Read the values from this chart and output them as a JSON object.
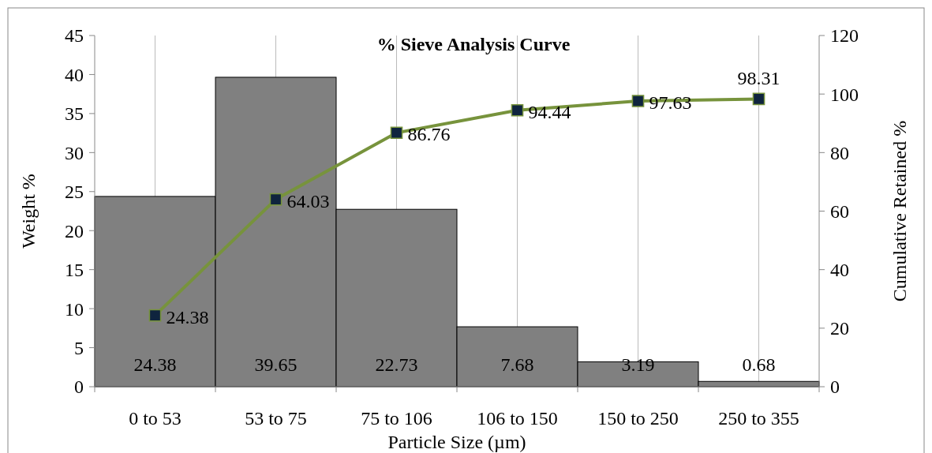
{
  "chart_data": {
    "type": "bar",
    "title": "% Sieve Analysis Curve",
    "xlabel": "Particle Size (µm)",
    "ylabel": "Weight %",
    "y2label": "Cumulative Retained %",
    "categories": [
      "0 to 53",
      "53 to 75",
      "75 to 106",
      "106 to 150",
      "150 to 250",
      "250 to 355"
    ],
    "series": [
      {
        "color": "#808080",
        "values": [
          24.38,
          39.65,
          22.73,
          7.68,
          3.19,
          0.68
        ]
      },
      {
        "type": "line",
        "axis": "y2",
        "color": "#77933c",
        "values": [
          24.38,
          64.03,
          86.76,
          94.44,
          97.63,
          98.31
        ]
      }
    ],
    "ylim": [
      0,
      45
    ],
    "yticks": [
      0,
      5,
      10,
      15,
      20,
      25,
      30,
      35,
      40,
      45
    ],
    "y2lim": [
      0,
      120
    ],
    "y2ticks": [
      0,
      20,
      40,
      60,
      80,
      100,
      120
    ],
    "grid": "x",
    "marker": "square",
    "data_labels": true
  }
}
